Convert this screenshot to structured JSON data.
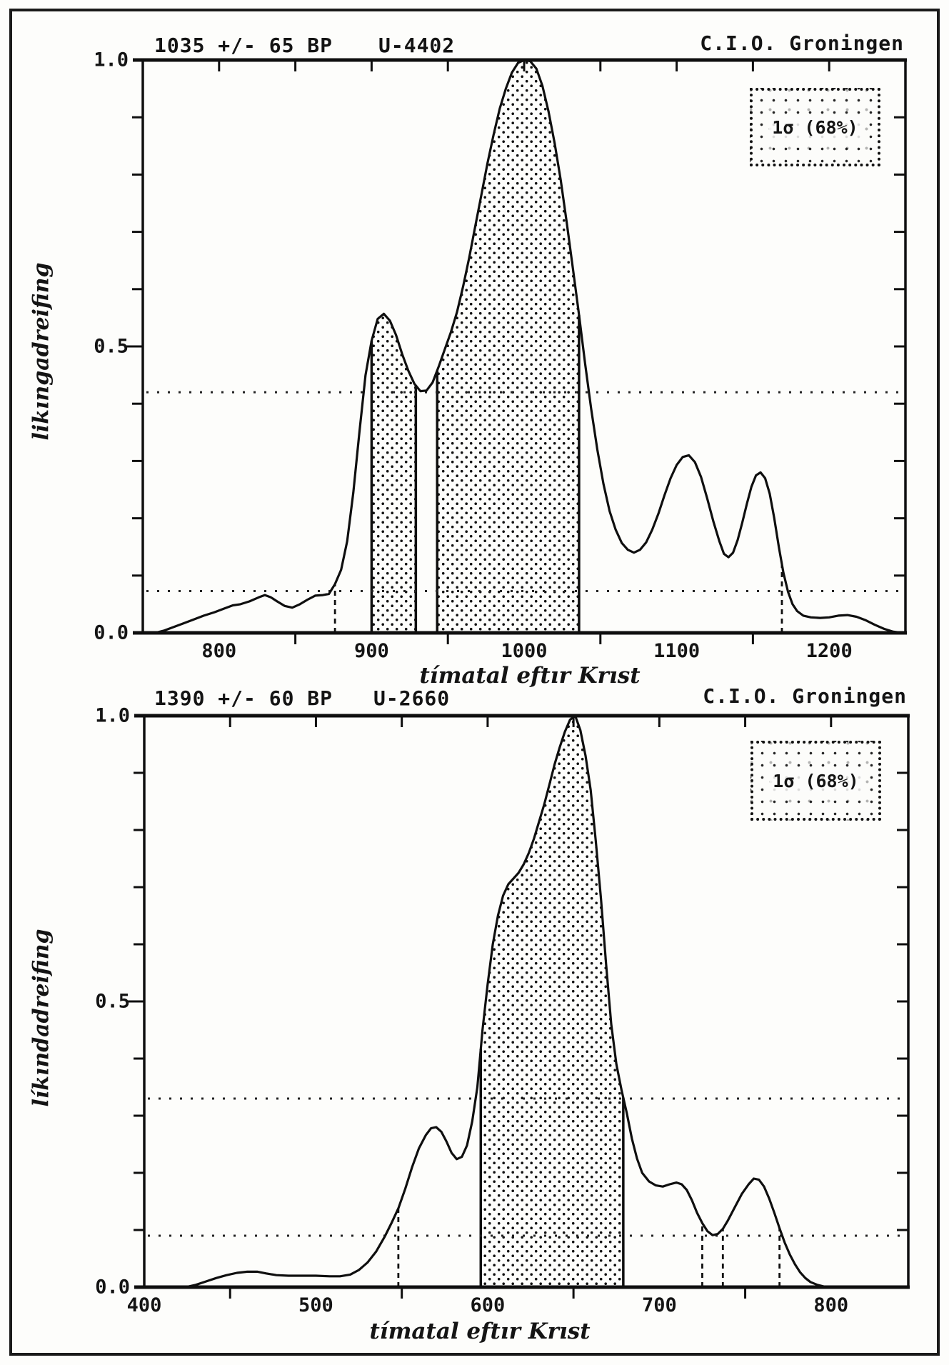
{
  "page": {
    "paper_color": "#fdfdfb",
    "frame_color": "#1a1a1a",
    "ink_color": "#141414"
  },
  "chart_data": [
    {
      "type": "area",
      "title_left": "1035 +/- 65 BP",
      "title_mid": "U-4402",
      "title_right": "C.I.O. Groningen",
      "ylabel": "likıngadreifing",
      "xlabel": "tímatal eftır Krıst",
      "legend_label": "1σ (68%)",
      "x_axis": {
        "min": 750,
        "max": 1250
      },
      "y_axis": {
        "min": 0,
        "max": 1
      },
      "x_tick_labels": [
        800,
        900,
        1000,
        1100,
        1200
      ],
      "x_ticks_top": [
        800,
        850,
        900,
        950,
        1000,
        1050,
        1100,
        1150,
        1200
      ],
      "x_ticks_bottom": [
        850,
        950,
        1050,
        1150
      ],
      "y_ticks": [
        0.1,
        0.2,
        0.3,
        0.4,
        0.5,
        0.6,
        0.7,
        0.8,
        0.9
      ],
      "y_tick_labels": [
        {
          "text": "1.0",
          "value": 1
        },
        {
          "text": "0.5",
          "value": 0.5
        },
        {
          "text": "0.0",
          "value": 0
        }
      ],
      "dotted_levels": [
        0.42,
        0.073
      ],
      "dashed_markers": [
        876,
        1169
      ],
      "sigma_regions": [
        [
          900,
          929
        ],
        [
          943,
          1036
        ]
      ],
      "curve": [
        [
          758,
          0
        ],
        [
          764,
          0.004
        ],
        [
          770,
          0.01
        ],
        [
          776,
          0.016
        ],
        [
          782,
          0.022
        ],
        [
          790,
          0.03
        ],
        [
          797,
          0.036
        ],
        [
          803,
          0.042
        ],
        [
          809,
          0.048
        ],
        [
          814,
          0.05
        ],
        [
          820,
          0.055
        ],
        [
          826,
          0.062
        ],
        [
          830,
          0.066
        ],
        [
          834,
          0.062
        ],
        [
          838,
          0.055
        ],
        [
          843,
          0.047
        ],
        [
          848,
          0.044
        ],
        [
          853,
          0.05
        ],
        [
          858,
          0.058
        ],
        [
          863,
          0.065
        ],
        [
          868,
          0.066
        ],
        [
          872,
          0.068
        ],
        [
          876,
          0.085
        ],
        [
          880,
          0.11
        ],
        [
          884,
          0.16
        ],
        [
          888,
          0.245
        ],
        [
          892,
          0.35
        ],
        [
          896,
          0.45
        ],
        [
          900,
          0.51
        ],
        [
          904,
          0.548
        ],
        [
          908,
          0.557
        ],
        [
          912,
          0.545
        ],
        [
          916,
          0.52
        ],
        [
          920,
          0.487
        ],
        [
          924,
          0.458
        ],
        [
          928,
          0.435
        ],
        [
          932,
          0.422
        ],
        [
          936,
          0.423
        ],
        [
          940,
          0.437
        ],
        [
          944,
          0.465
        ],
        [
          948,
          0.495
        ],
        [
          952,
          0.525
        ],
        [
          956,
          0.56
        ],
        [
          960,
          0.605
        ],
        [
          964,
          0.655
        ],
        [
          968,
          0.71
        ],
        [
          972,
          0.765
        ],
        [
          976,
          0.82
        ],
        [
          980,
          0.87
        ],
        [
          984,
          0.915
        ],
        [
          988,
          0.95
        ],
        [
          992,
          0.978
        ],
        [
          996,
          0.995
        ],
        [
          1000,
          1
        ],
        [
          1004,
          0.998
        ],
        [
          1008,
          0.985
        ],
        [
          1012,
          0.955
        ],
        [
          1016,
          0.91
        ],
        [
          1020,
          0.855
        ],
        [
          1024,
          0.79
        ],
        [
          1028,
          0.715
        ],
        [
          1032,
          0.635
        ],
        [
          1036,
          0.555
        ],
        [
          1040,
          0.47
        ],
        [
          1044,
          0.39
        ],
        [
          1048,
          0.32
        ],
        [
          1052,
          0.26
        ],
        [
          1056,
          0.213
        ],
        [
          1060,
          0.18
        ],
        [
          1064,
          0.157
        ],
        [
          1068,
          0.145
        ],
        [
          1072,
          0.14
        ],
        [
          1076,
          0.145
        ],
        [
          1080,
          0.158
        ],
        [
          1084,
          0.18
        ],
        [
          1088,
          0.208
        ],
        [
          1092,
          0.24
        ],
        [
          1096,
          0.27
        ],
        [
          1100,
          0.293
        ],
        [
          1104,
          0.307
        ],
        [
          1108,
          0.31
        ],
        [
          1112,
          0.298
        ],
        [
          1116,
          0.272
        ],
        [
          1120,
          0.235
        ],
        [
          1124,
          0.195
        ],
        [
          1128,
          0.16
        ],
        [
          1131,
          0.138
        ],
        [
          1134,
          0.132
        ],
        [
          1137,
          0.14
        ],
        [
          1140,
          0.162
        ],
        [
          1143,
          0.192
        ],
        [
          1146,
          0.225
        ],
        [
          1149,
          0.255
        ],
        [
          1152,
          0.275
        ],
        [
          1155,
          0.28
        ],
        [
          1158,
          0.27
        ],
        [
          1161,
          0.243
        ],
        [
          1164,
          0.2
        ],
        [
          1167,
          0.15
        ],
        [
          1170,
          0.105
        ],
        [
          1173,
          0.072
        ],
        [
          1176,
          0.05
        ],
        [
          1179,
          0.038
        ],
        [
          1183,
          0.03
        ],
        [
          1188,
          0.027
        ],
        [
          1194,
          0.026
        ],
        [
          1200,
          0.027
        ],
        [
          1206,
          0.03
        ],
        [
          1212,
          0.031
        ],
        [
          1218,
          0.028
        ],
        [
          1224,
          0.022
        ],
        [
          1230,
          0.014
        ],
        [
          1236,
          0.007
        ],
        [
          1242,
          0.002
        ],
        [
          1248,
          0
        ]
      ]
    },
    {
      "type": "area",
      "title_left": "1390 +/- 60 BP",
      "title_mid": "U-2660",
      "title_right": "C.I.O. Groningen",
      "ylabel": "líkındadreifing",
      "xlabel": "tímatal eftır Krıst",
      "legend_label": "1σ (68%)",
      "x_axis": {
        "min": 400,
        "max": 845
      },
      "y_axis": {
        "min": 0,
        "max": 1
      },
      "x_tick_labels": [
        400,
        500,
        600,
        700,
        800
      ],
      "x_ticks_top": [
        450,
        500,
        550,
        600,
        650,
        700,
        750,
        800
      ],
      "x_ticks_bottom": [
        450,
        550,
        650,
        750
      ],
      "y_ticks": [
        0.1,
        0.2,
        0.3,
        0.4,
        0.5,
        0.6,
        0.7,
        0.8,
        0.9
      ],
      "y_tick_labels": [
        {
          "text": "1.0",
          "value": 1
        },
        {
          "text": "0.5",
          "value": 0.5
        },
        {
          "text": "0.0",
          "value": 0
        }
      ],
      "dotted_levels": [
        0.33,
        0.09
      ],
      "dashed_markers": [
        548,
        725,
        737,
        770
      ],
      "sigma_regions": [
        [
          596,
          679
        ]
      ],
      "curve": [
        [
          424,
          0
        ],
        [
          430,
          0.004
        ],
        [
          436,
          0.01
        ],
        [
          442,
          0.016
        ],
        [
          448,
          0.021
        ],
        [
          454,
          0.025
        ],
        [
          460,
          0.027
        ],
        [
          466,
          0.027
        ],
        [
          471,
          0.024
        ],
        [
          477,
          0.021
        ],
        [
          484,
          0.02
        ],
        [
          492,
          0.02
        ],
        [
          500,
          0.02
        ],
        [
          508,
          0.019
        ],
        [
          514,
          0.019
        ],
        [
          520,
          0.022
        ],
        [
          525,
          0.03
        ],
        [
          530,
          0.043
        ],
        [
          535,
          0.062
        ],
        [
          540,
          0.088
        ],
        [
          544,
          0.112
        ],
        [
          548,
          0.138
        ],
        [
          552,
          0.172
        ],
        [
          556,
          0.21
        ],
        [
          560,
          0.243
        ],
        [
          564,
          0.266
        ],
        [
          567,
          0.278
        ],
        [
          570,
          0.28
        ],
        [
          573,
          0.272
        ],
        [
          576,
          0.255
        ],
        [
          579,
          0.235
        ],
        [
          582,
          0.224
        ],
        [
          585,
          0.228
        ],
        [
          588,
          0.248
        ],
        [
          591,
          0.29
        ],
        [
          594,
          0.35
        ],
        [
          597,
          0.45
        ],
        [
          600,
          0.53
        ],
        [
          603,
          0.6
        ],
        [
          606,
          0.65
        ],
        [
          609,
          0.685
        ],
        [
          612,
          0.705
        ],
        [
          615,
          0.715
        ],
        [
          618,
          0.725
        ],
        [
          621,
          0.74
        ],
        [
          624,
          0.76
        ],
        [
          627,
          0.785
        ],
        [
          630,
          0.815
        ],
        [
          633,
          0.845
        ],
        [
          636,
          0.88
        ],
        [
          639,
          0.915
        ],
        [
          642,
          0.945
        ],
        [
          645,
          0.972
        ],
        [
          648,
          0.993
        ],
        [
          651,
          1
        ],
        [
          654,
          0.975
        ],
        [
          657,
          0.93
        ],
        [
          660,
          0.87
        ],
        [
          663,
          0.78
        ],
        [
          666,
          0.68
        ],
        [
          669,
          0.565
        ],
        [
          672,
          0.46
        ],
        [
          675,
          0.39
        ],
        [
          678,
          0.345
        ],
        [
          681,
          0.305
        ],
        [
          684,
          0.26
        ],
        [
          687,
          0.225
        ],
        [
          690,
          0.2
        ],
        [
          694,
          0.185
        ],
        [
          698,
          0.178
        ],
        [
          702,
          0.176
        ],
        [
          706,
          0.18
        ],
        [
          710,
          0.183
        ],
        [
          713,
          0.18
        ],
        [
          716,
          0.17
        ],
        [
          719,
          0.152
        ],
        [
          722,
          0.13
        ],
        [
          725,
          0.112
        ],
        [
          728,
          0.098
        ],
        [
          731,
          0.091
        ],
        [
          734,
          0.093
        ],
        [
          737,
          0.102
        ],
        [
          740,
          0.117
        ],
        [
          744,
          0.14
        ],
        [
          748,
          0.163
        ],
        [
          752,
          0.18
        ],
        [
          755,
          0.19
        ],
        [
          758,
          0.188
        ],
        [
          761,
          0.176
        ],
        [
          764,
          0.155
        ],
        [
          767,
          0.13
        ],
        [
          770,
          0.103
        ],
        [
          773,
          0.078
        ],
        [
          776,
          0.057
        ],
        [
          779,
          0.04
        ],
        [
          782,
          0.026
        ],
        [
          785,
          0.016
        ],
        [
          788,
          0.009
        ],
        [
          792,
          0.004
        ],
        [
          796,
          0.001
        ],
        [
          800,
          0
        ]
      ]
    }
  ]
}
